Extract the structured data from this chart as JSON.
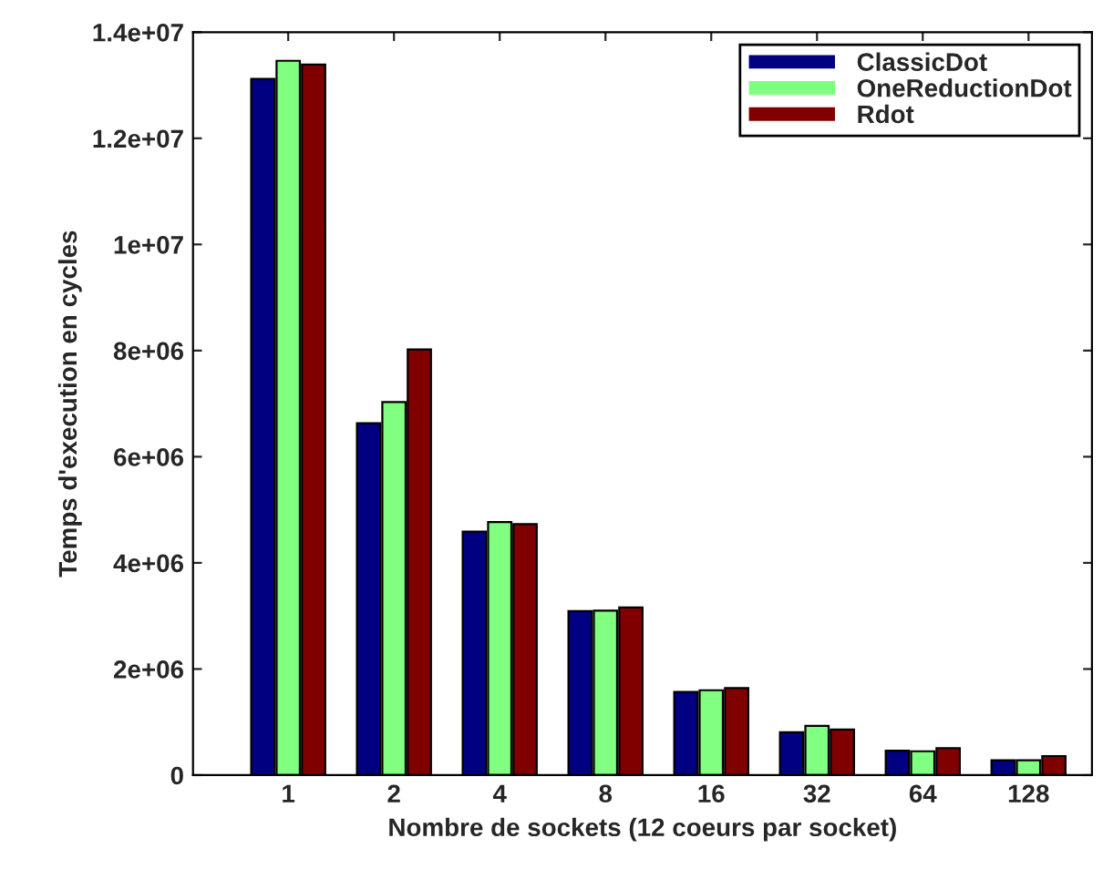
{
  "chart_data": {
    "type": "bar",
    "xlabel": "Nombre de sockets (12 coeurs par socket)",
    "ylabel": "Temps d'execution en cycles",
    "categories": [
      "1",
      "2",
      "4",
      "8",
      "16",
      "32",
      "64",
      "128"
    ],
    "series": [
      {
        "name": "ClassicDot",
        "color": "#000080",
        "values": [
          13120000,
          6630000,
          4590000,
          3090000,
          1570000,
          810000,
          460000,
          280000
        ]
      },
      {
        "name": "OneReductionDot",
        "color": "#80ff80",
        "values": [
          13460000,
          7030000,
          4770000,
          3100000,
          1600000,
          930000,
          450000,
          280000
        ]
      },
      {
        "name": "Rdot",
        "color": "#800000",
        "values": [
          13390000,
          8020000,
          4730000,
          3160000,
          1640000,
          860000,
          510000,
          360000
        ]
      }
    ],
    "ylim": [
      0,
      14000000
    ],
    "yticks": [
      0,
      {
        "value": 2000000,
        "label": "2e+06"
      },
      {
        "value": 4000000,
        "label": "4e+06"
      },
      {
        "value": 6000000,
        "label": "6e+06"
      },
      {
        "value": 8000000,
        "label": "8e+06"
      },
      {
        "value": 10000000,
        "label": "1e+07"
      },
      {
        "value": 12000000,
        "label": "1.2e+07"
      },
      {
        "value": 14000000,
        "label": "1.4e+07"
      }
    ],
    "legend": "top right",
    "grid": false
  }
}
